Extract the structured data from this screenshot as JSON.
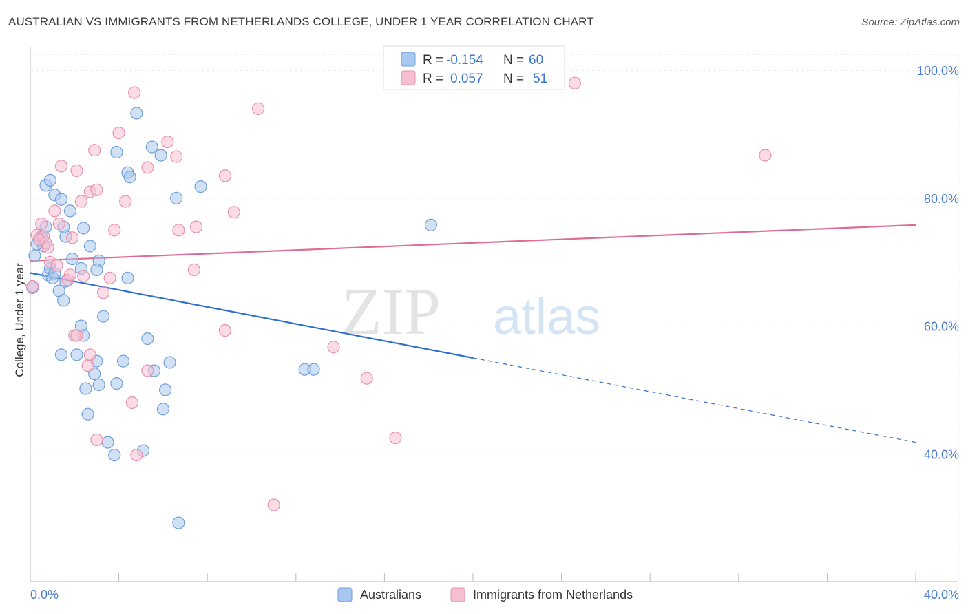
{
  "title": "AUSTRALIAN VS IMMIGRANTS FROM NETHERLANDS COLLEGE, UNDER 1 YEAR CORRELATION CHART",
  "source": "Source: ZipAtlas.com",
  "watermark": {
    "left": "ZIP",
    "right": "atlas"
  },
  "colors": {
    "australians_fill": "#a9c8ef",
    "australians_stroke": "#6f9fd8",
    "australians_line": "#2f6fcd",
    "netherlands_fill": "#f7bfd2",
    "netherlands_stroke": "#e88fae",
    "netherlands_line": "#e06b94",
    "axis_text": "#4a7fce",
    "grid": "#e3e3e3"
  },
  "legend_top": [
    {
      "r_label": "R =",
      "r_value": "-0.154",
      "n_label": "N =",
      "n_value": "60"
    },
    {
      "r_label": "R =",
      "r_value": "0.057",
      "n_label": "N =",
      "n_value": "51"
    }
  ],
  "chart_data": {
    "type": "scatter",
    "title": "AUSTRALIAN VS IMMIGRANTS FROM NETHERLANDS COLLEGE, UNDER 1 YEAR CORRELATION CHART",
    "xlabel": "",
    "ylabel": "College, Under 1 year",
    "xlim": [
      0,
      40
    ],
    "ylim": [
      20,
      104
    ],
    "x_tick_labels": [
      "0.0%",
      "40.0%"
    ],
    "y_ticks": [
      40,
      60,
      80,
      100
    ],
    "y_tick_labels": [
      "40.0%",
      "60.0%",
      "80.0%",
      "100.0%"
    ],
    "grid": true,
    "legend_position": "bottom",
    "series": [
      {
        "name": "Australians",
        "trend": {
          "x": [
            0,
            20
          ],
          "y": [
            68.3,
            55
          ],
          "dashed_to": [
            40,
            41.8
          ]
        },
        "points": [
          [
            0.2,
            71.0
          ],
          [
            0.4,
            73.5
          ],
          [
            0.5,
            74.0
          ],
          [
            0.6,
            72.5
          ],
          [
            0.7,
            75.5
          ],
          [
            0.8,
            68.0
          ],
          [
            0.9,
            69.0
          ],
          [
            1.0,
            67.5
          ],
          [
            0.7,
            82.0
          ],
          [
            0.9,
            82.8
          ],
          [
            1.1,
            80.5
          ],
          [
            1.4,
            79.8
          ],
          [
            1.8,
            78.0
          ],
          [
            1.5,
            75.5
          ],
          [
            1.6,
            74.0
          ],
          [
            1.9,
            70.5
          ],
          [
            1.3,
            65.5
          ],
          [
            1.5,
            64.0
          ],
          [
            1.6,
            67.0
          ],
          [
            2.3,
            69.0
          ],
          [
            2.4,
            75.3
          ],
          [
            2.7,
            72.5
          ],
          [
            3.1,
            70.2
          ],
          [
            3.0,
            68.8
          ],
          [
            1.4,
            55.5
          ],
          [
            2.1,
            55.5
          ],
          [
            2.3,
            60.0
          ],
          [
            2.4,
            58.5
          ],
          [
            3.3,
            61.5
          ],
          [
            3.0,
            54.5
          ],
          [
            2.9,
            52.5
          ],
          [
            2.5,
            50.2
          ],
          [
            3.1,
            50.8
          ],
          [
            3.9,
            51.0
          ],
          [
            4.2,
            54.5
          ],
          [
            4.4,
            67.5
          ],
          [
            5.3,
            58.0
          ],
          [
            5.6,
            53.0
          ],
          [
            6.1,
            50.0
          ],
          [
            6.3,
            54.3
          ],
          [
            6.0,
            47.0
          ],
          [
            2.6,
            46.2
          ],
          [
            3.5,
            41.8
          ],
          [
            3.8,
            39.8
          ],
          [
            5.1,
            40.5
          ],
          [
            6.7,
            29.2
          ],
          [
            3.9,
            87.2
          ],
          [
            4.4,
            84.0
          ],
          [
            4.5,
            83.3
          ],
          [
            4.8,
            93.3
          ],
          [
            5.5,
            88.0
          ],
          [
            5.9,
            86.7
          ],
          [
            6.6,
            80.0
          ],
          [
            7.7,
            81.8
          ],
          [
            12.4,
            53.2
          ],
          [
            12.8,
            53.2
          ],
          [
            18.1,
            75.8
          ],
          [
            0.3,
            72.8
          ],
          [
            1.1,
            68.2
          ],
          [
            0.1,
            66.0
          ]
        ]
      },
      {
        "name": "Immigrants from Netherlands",
        "trend": {
          "x": [
            0,
            40
          ],
          "y": [
            70.2,
            75.8
          ]
        },
        "points": [
          [
            0.3,
            74.2
          ],
          [
            0.5,
            76.0
          ],
          [
            0.6,
            74.0
          ],
          [
            0.7,
            73.0
          ],
          [
            0.8,
            72.3
          ],
          [
            0.9,
            70.0
          ],
          [
            1.1,
            78.0
          ],
          [
            1.2,
            69.5
          ],
          [
            1.3,
            76.0
          ],
          [
            1.4,
            85.0
          ],
          [
            1.7,
            67.2
          ],
          [
            1.9,
            73.8
          ],
          [
            2.1,
            84.3
          ],
          [
            2.3,
            79.5
          ],
          [
            2.4,
            67.8
          ],
          [
            2.7,
            81.0
          ],
          [
            3.0,
            81.3
          ],
          [
            2.9,
            87.5
          ],
          [
            3.3,
            65.2
          ],
          [
            3.6,
            67.5
          ],
          [
            3.8,
            75.0
          ],
          [
            4.0,
            90.2
          ],
          [
            4.3,
            79.5
          ],
          [
            4.7,
            96.5
          ],
          [
            5.3,
            84.8
          ],
          [
            6.2,
            88.8
          ],
          [
            6.6,
            86.5
          ],
          [
            6.7,
            75.0
          ],
          [
            7.4,
            68.8
          ],
          [
            7.5,
            75.5
          ],
          [
            8.8,
            83.5
          ],
          [
            9.2,
            77.8
          ],
          [
            8.8,
            59.3
          ],
          [
            10.3,
            94.0
          ],
          [
            2.0,
            58.5
          ],
          [
            2.1,
            58.5
          ],
          [
            2.6,
            53.8
          ],
          [
            2.7,
            55.5
          ],
          [
            5.3,
            53.0
          ],
          [
            4.6,
            48.0
          ],
          [
            3.0,
            42.2
          ],
          [
            4.8,
            39.8
          ],
          [
            11.0,
            32.0
          ],
          [
            13.7,
            56.7
          ],
          [
            15.2,
            51.8
          ],
          [
            16.5,
            42.5
          ],
          [
            24.6,
            98.0
          ],
          [
            33.2,
            86.7
          ],
          [
            0.4,
            73.5
          ],
          [
            0.1,
            66.2
          ],
          [
            1.8,
            68.0
          ]
        ]
      }
    ]
  }
}
